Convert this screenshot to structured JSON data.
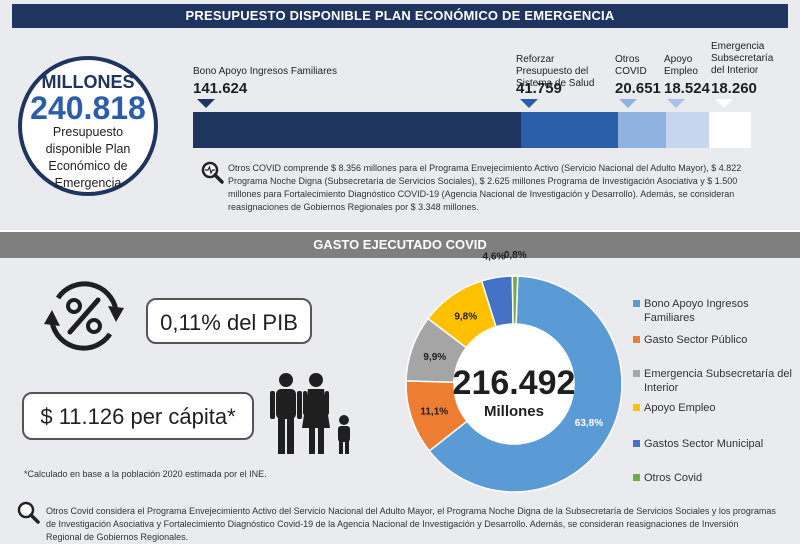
{
  "header1": "PRESUPUESTO DISPONIBLE PLAN ECONÓMICO DE EMERGENCIA",
  "header2": "GASTO EJECUTADO COVID",
  "budget_circle": {
    "unit": "MILLONES",
    "value": "240.818",
    "desc": "Presupuesto disponible Plan Económico de Emergencia"
  },
  "budget_items": [
    {
      "label": "Bono Apoyo Ingresos Familiares",
      "value_text": "141.624",
      "value": 141624,
      "color": "#1f3560"
    },
    {
      "label": "Reforzar Presupuesto del Sistema de Salud",
      "value_text": "41.759",
      "value": 41759,
      "color": "#2a5ea8"
    },
    {
      "label": "Otros COVID",
      "value_text": "20.651",
      "value": 20651,
      "color": "#8fb2e0"
    },
    {
      "label": "Apoyo Empleo",
      "value_text": "18.524",
      "value": 18524,
      "color": "#c6d6ef"
    },
    {
      "label": "Emergencia Subsecretaría del Interior",
      "value_text": "18.260",
      "value": 18260,
      "color": "#ffffff"
    }
  ],
  "note1": "Otros COVID comprende $ 8.356 millones para el Programa Envejecimiento Activo (Servicio Nacional del Adulto Mayor), $ 4.822 Programa Noche Digna (Subsecretaría de Servicios Sociales), $ 2.625 millones Programa de Investigación Asociativa y $ 1.500 millones para Fortalecimiento Diagnóstico COVID-19 (Agencia Nacional de Investigación y Desarrollo). Además, se consideran reasignaciones de Gobiernos Regionales por $ 3.348 millones.",
  "pib_text": "0,11% del PIB",
  "per_capita_text": "$ 11.126 per cápita*",
  "footnote": "*Calculado en base a la población 2020 estimada por el INE.",
  "note2": "Otros Covid considera el Programa Envejecimiento Activo del Servicio Nacional del Adulto Mayor, el Programa Noche Digna de la Subsecretaría de Servicios Sociales y los programas de Investigación Asociativa y Fortalecimiento Diagnóstico Covid-19 de la Agencia Nacional de Investigación y Desarrollo. Además, se consideran reasignaciones de Inversión Regional de Gobiernos Regionales.",
  "icons": {
    "percent": "percent-cycle-icon",
    "family": "family-icon",
    "search": "magnifier-icon"
  },
  "chart_data": {
    "type": "pie",
    "center_value": "216.492",
    "center_unit": "Millones",
    "series": [
      {
        "name": "Bono Apoyo Ingresos Familiares",
        "value": 63.8,
        "label": "63,8%",
        "color": "#5b9bd5"
      },
      {
        "name": "Gasto Sector Público",
        "value": 11.1,
        "label": "11,1%",
        "color": "#ed7d31"
      },
      {
        "name": "Emergencia Subsecretaría del Interior",
        "value": 9.9,
        "label": "9,9%",
        "color": "#a5a5a5"
      },
      {
        "name": "Apoyo Empleo",
        "value": 9.8,
        "label": "9,8%",
        "color": "#ffc000"
      },
      {
        "name": "Gastos Sector Municipal",
        "value": 4.6,
        "label": "4,6%",
        "color": "#4472c4"
      },
      {
        "name": "Otros Covid",
        "value": 0.8,
        "label": "0,8%",
        "color": "#70ad47"
      }
    ],
    "legend": "right"
  }
}
